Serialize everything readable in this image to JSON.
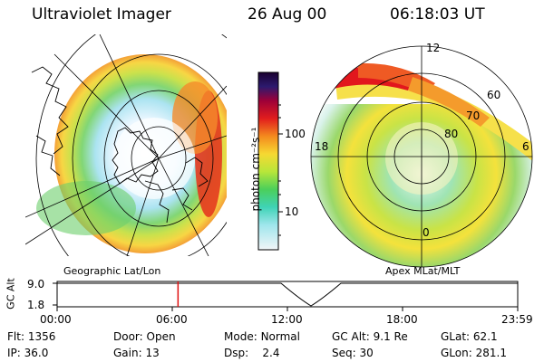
{
  "header": {
    "instrument": "Ultraviolet Imager",
    "date": "26 Aug 00",
    "time": "06:18:03 UT"
  },
  "colorbar": {
    "unit_label": "photon cm⁻²s⁻¹",
    "ticks": [
      "100",
      "10"
    ]
  },
  "left_map": {
    "label": "Geographic Lat/Lon"
  },
  "right_map": {
    "label": "Apex MLat/MLT",
    "mlt_labels": [
      "12",
      "18",
      "6",
      "0"
    ],
    "mlat_labels": [
      "60",
      "70",
      "80"
    ]
  },
  "altitude_plot": {
    "ylabel": "GC Alt",
    "yticks": [
      "9.0",
      "1.8"
    ],
    "xticks": [
      "00:00",
      "06:00",
      "12:00",
      "18:00",
      "23:59"
    ],
    "current_time_marker_fraction": 0.2625
  },
  "status": {
    "row1": [
      {
        "key": "Flt:",
        "value": "1356"
      },
      {
        "key": "Door:",
        "value": "Open"
      },
      {
        "key": "Mode:",
        "value": "Normal"
      },
      {
        "key": "GC Alt:",
        "value": "9.1 Re"
      },
      {
        "key": "GLat:",
        "value": "62.1"
      }
    ],
    "row2": [
      {
        "key": "IP:",
        "value": "36.0"
      },
      {
        "key": "Gain:",
        "value": "13"
      },
      {
        "key": "Dsp:",
        "value": "2.4"
      },
      {
        "key": "Seq:",
        "value": "30"
      },
      {
        "key": "GLon:",
        "value": "281.1"
      }
    ]
  }
}
